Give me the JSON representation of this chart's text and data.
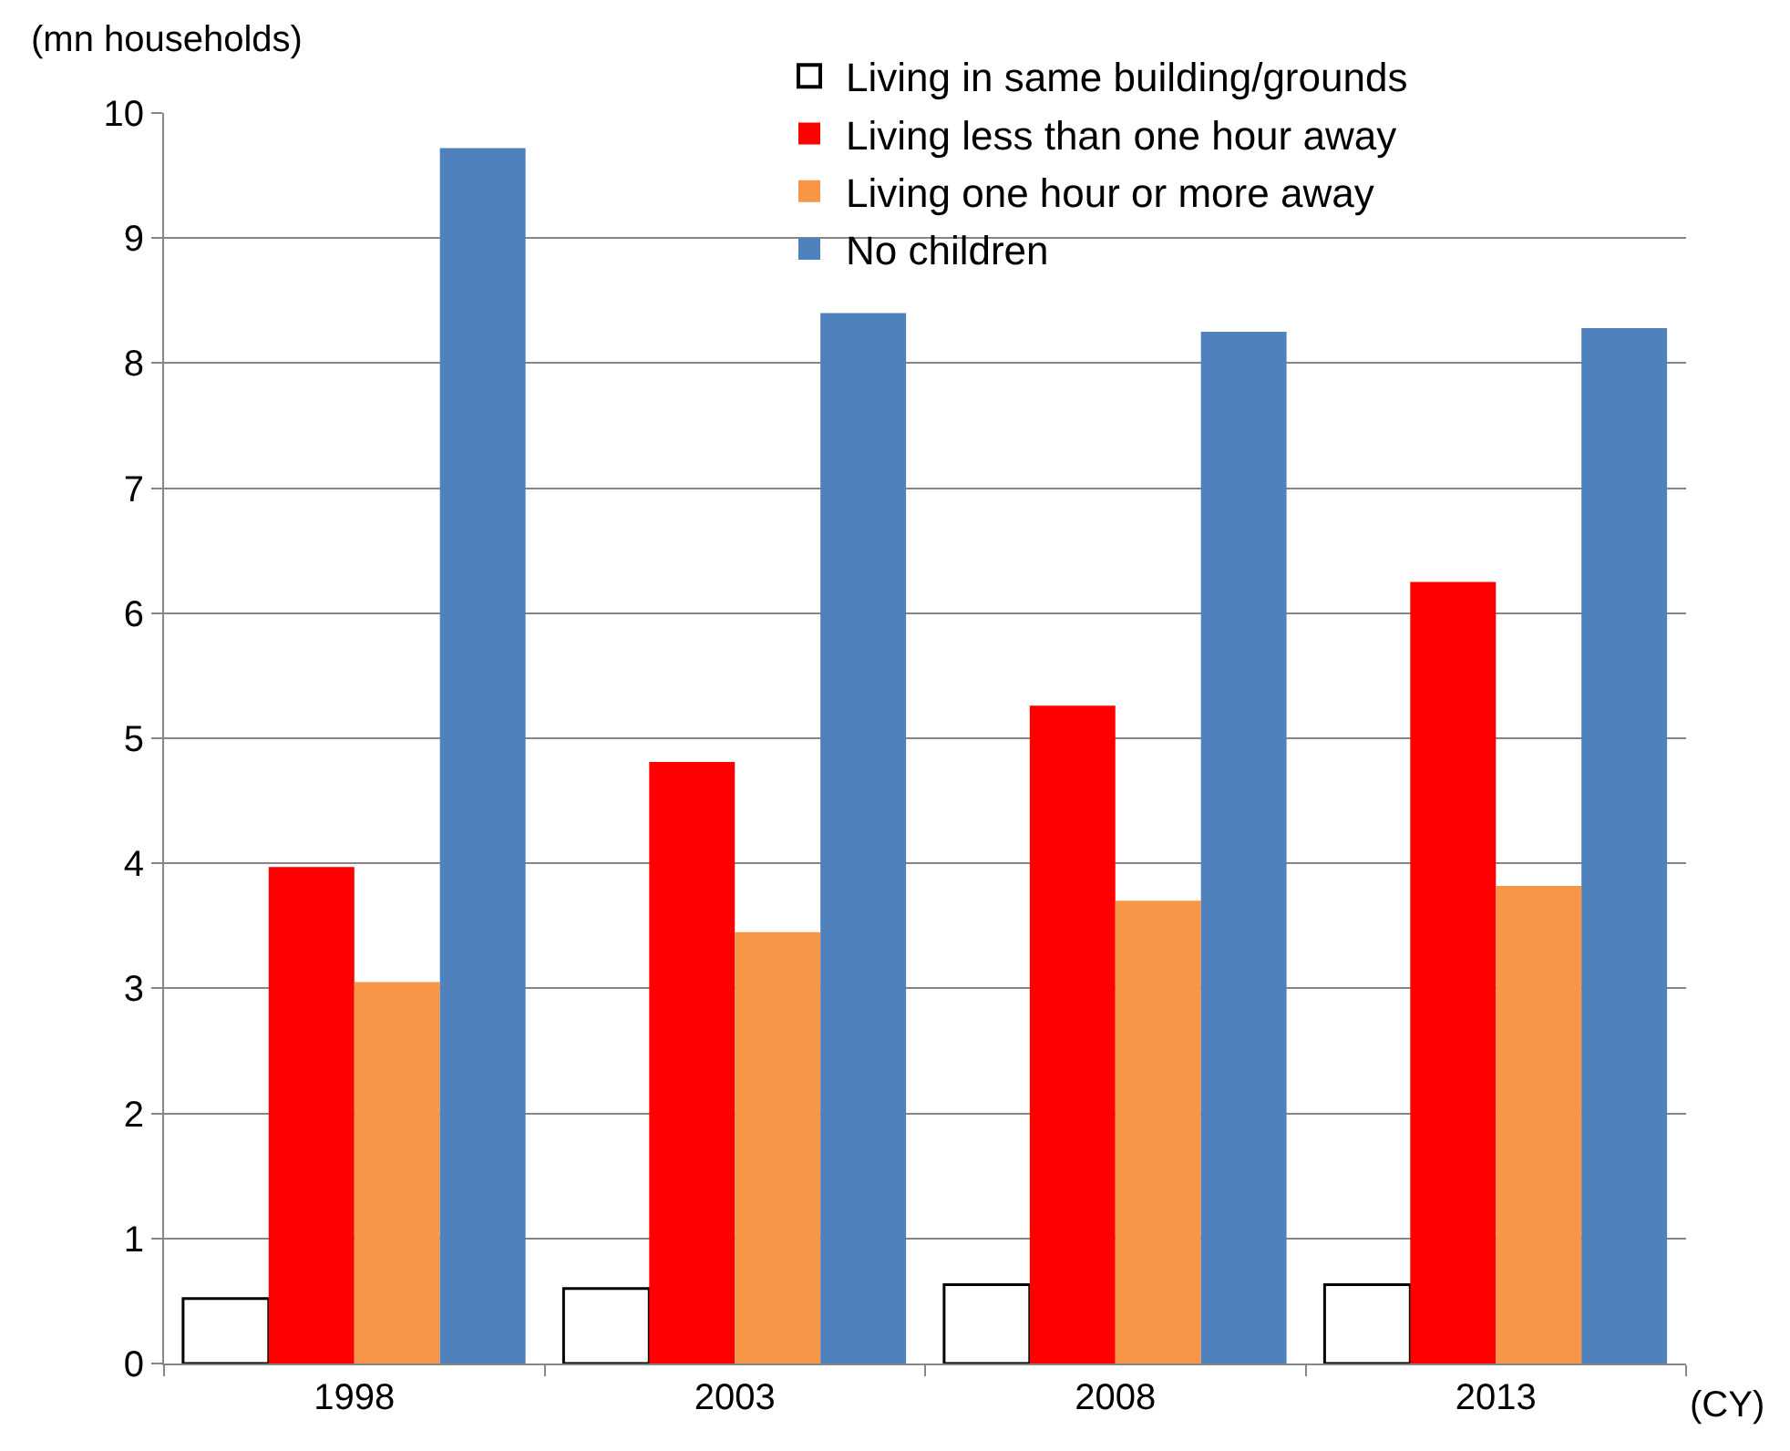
{
  "chart_data": {
    "type": "bar",
    "ylabel": "(mn households)",
    "xlabel": "(CY)",
    "categories": [
      "1998",
      "2003",
      "2008",
      "2013"
    ],
    "series": [
      {
        "name": "Living in same building/grounds",
        "color": "#ffffff",
        "values": [
          0.52,
          0.6,
          0.63,
          0.63
        ]
      },
      {
        "name": "Living less than one hour away",
        "color": "#ff0000",
        "values": [
          3.97,
          4.81,
          5.26,
          6.25
        ]
      },
      {
        "name": "Living one hour or more away",
        "color": "#f79646",
        "values": [
          3.05,
          3.45,
          3.7,
          3.82
        ]
      },
      {
        "name": "No children",
        "color": "#4f81bd",
        "values": [
          9.72,
          8.4,
          8.25,
          8.28
        ]
      }
    ],
    "ylim": [
      0,
      10
    ],
    "yticks": [
      0,
      1,
      2,
      3,
      4,
      5,
      6,
      7,
      8,
      9,
      10
    ],
    "grid": "y",
    "legend": "top"
  }
}
